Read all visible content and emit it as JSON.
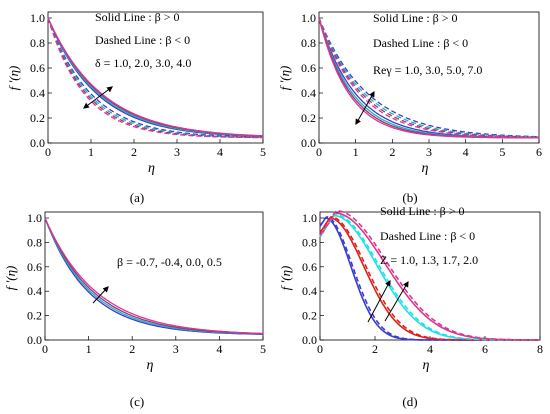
{
  "panel_labels": [
    "(a)",
    "(b)",
    "(c)",
    "(d)"
  ],
  "ylabel": "f '(η)",
  "colors": {
    "blue": "#3b3bd6",
    "teal": "#1fb5a8",
    "purple": "#8b3a8b",
    "magenta": "#e0358f",
    "cyan": "#22e0e8",
    "red": "#e0201a"
  },
  "chart_data": [
    {
      "type": "line",
      "panel": "(a)",
      "xlabel": "η",
      "ylabel": "f '(η)",
      "xlim": [
        0,
        5
      ],
      "ylim": [
        0,
        1.0
      ],
      "xticks": [
        0,
        1,
        2,
        3,
        4,
        5
      ],
      "yticks": [
        0.0,
        0.2,
        0.4,
        0.6,
        0.8,
        1.0
      ],
      "annotations": [
        "Solid Line : β > 0",
        "Dashed Line : β < 0",
        "δ = 1.0, 2.0, 3.0, 4.0"
      ],
      "series": [
        {
          "style": "solid",
          "color": "#3b3bd6",
          "decay": 0.88
        },
        {
          "style": "solid",
          "color": "#1fb5a8",
          "decay": 0.85
        },
        {
          "style": "solid",
          "color": "#8b3a8b",
          "decay": 0.82
        },
        {
          "style": "solid",
          "color": "#e0358f",
          "decay": 0.8
        },
        {
          "style": "dashed",
          "color": "#3b3bd6",
          "decay": 1.0
        },
        {
          "style": "dashed",
          "color": "#1fb5a8",
          "decay": 1.06
        },
        {
          "style": "dashed",
          "color": "#8b3a8b",
          "decay": 1.12
        },
        {
          "style": "dashed",
          "color": "#e0358f",
          "decay": 1.18
        }
      ]
    },
    {
      "type": "line",
      "panel": "(b)",
      "xlabel": "η",
      "ylabel": "f '(η)",
      "xlim": [
        0,
        6
      ],
      "ylim": [
        0,
        1.0
      ],
      "xticks": [
        0,
        1,
        2,
        3,
        4,
        5,
        6
      ],
      "yticks": [
        0.0,
        0.2,
        0.4,
        0.6,
        0.8,
        1.0
      ],
      "annotations": [
        "Solid Line : β > 0",
        "Dashed Line : β < 0",
        "Reγ = 1.0, 3.0, 5.0, 7.0"
      ],
      "series": [
        {
          "style": "solid",
          "color": "#3b3bd6",
          "decay": 1.0
        },
        {
          "style": "solid",
          "color": "#1fb5a8",
          "decay": 1.08
        },
        {
          "style": "solid",
          "color": "#8b3a8b",
          "decay": 1.15
        },
        {
          "style": "solid",
          "color": "#e0358f",
          "decay": 1.22
        },
        {
          "style": "dashed",
          "color": "#3b3bd6",
          "decay": 0.75
        },
        {
          "style": "dashed",
          "color": "#1fb5a8",
          "decay": 0.8
        },
        {
          "style": "dashed",
          "color": "#8b3a8b",
          "decay": 0.85
        },
        {
          "style": "dashed",
          "color": "#e0358f",
          "decay": 0.9
        }
      ]
    },
    {
      "type": "line",
      "panel": "(c)",
      "xlabel": "η",
      "ylabel": "f '(η)",
      "xlim": [
        0,
        5
      ],
      "ylim": [
        0,
        1.0
      ],
      "xticks": [
        0,
        1,
        2,
        3,
        4,
        5
      ],
      "yticks": [
        0.0,
        0.2,
        0.4,
        0.6,
        0.8,
        1.0
      ],
      "annotations": [
        "β = -0.7, -0.4, 0.0, 0.5"
      ],
      "series": [
        {
          "style": "solid",
          "color": "#3b3bd6",
          "decay": 1.0
        },
        {
          "style": "solid",
          "color": "#1fb5a8",
          "decay": 0.95
        },
        {
          "style": "solid",
          "color": "#8b3a8b",
          "decay": 0.9
        },
        {
          "style": "solid",
          "color": "#e0358f",
          "decay": 0.85
        }
      ]
    },
    {
      "type": "line",
      "panel": "(d)",
      "xlabel": "η",
      "ylabel": "f '(η)",
      "xlim": [
        0,
        8
      ],
      "ylim": [
        0,
        1.0
      ],
      "xticks": [
        0,
        2,
        4,
        6,
        8
      ],
      "yticks": [
        0.0,
        0.2,
        0.4,
        0.6,
        0.8,
        1.0
      ],
      "annotations": [
        "Solid Line : β > 0",
        "Dashed Line : β < 0",
        "Z = 1.0, 1.3, 1.7, 2.0"
      ],
      "series": [
        {
          "style": "solid",
          "color": "#3b3bd6",
          "peak": 1.0,
          "center": 0.2,
          "width": 1.3
        },
        {
          "style": "solid",
          "color": "#e0201a",
          "peak": 1.0,
          "center": 0.35,
          "width": 1.75
        },
        {
          "style": "solid",
          "color": "#22e0e8",
          "peak": 1.02,
          "center": 0.5,
          "width": 2.2
        },
        {
          "style": "solid",
          "color": "#e0358f",
          "peak": 1.04,
          "center": 0.55,
          "width": 2.55
        },
        {
          "style": "dashed",
          "color": "#3b3bd6",
          "peak": 1.01,
          "center": 0.22,
          "width": 1.35
        },
        {
          "style": "dashed",
          "color": "#e0201a",
          "peak": 1.01,
          "center": 0.38,
          "width": 1.8
        },
        {
          "style": "dashed",
          "color": "#22e0e8",
          "peak": 1.03,
          "center": 0.52,
          "width": 2.25
        },
        {
          "style": "dashed",
          "color": "#e0358f",
          "peak": 1.06,
          "center": 0.58,
          "width": 2.6
        }
      ]
    }
  ]
}
